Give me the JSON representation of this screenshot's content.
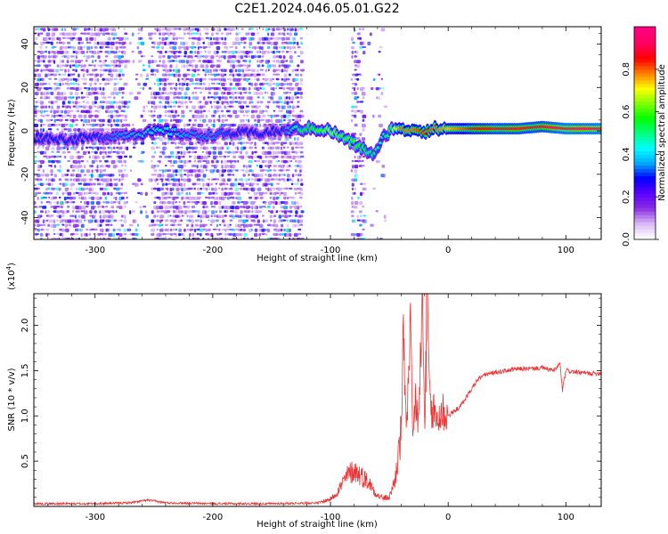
{
  "page_title": "C2E1.2024.046.05.01.G22",
  "chart_data": [
    {
      "type": "heatmap",
      "xlabel": "Height of straight line (km)",
      "ylabel": "Frequency (Hz)",
      "xlim": [
        -352,
        130
      ],
      "ylim": [
        -50,
        48
      ],
      "x_ticks": [
        -300,
        -200,
        -100,
        0,
        100
      ],
      "y_ticks": [
        -40,
        -20,
        0,
        20,
        40
      ],
      "grid": false,
      "colorbar": {
        "label": "Normalized spectral amplitude",
        "range": [
          0,
          1
        ],
        "ticks": [
          0.0,
          0.2,
          0.4,
          0.6,
          0.8
        ],
        "tick_labels": [
          "0.0",
          "0.2",
          "0.4",
          "0.6",
          "0.8"
        ],
        "colors": [
          "#ffffff",
          "#d8b4f6",
          "#8a2be2",
          "#5a00ff",
          "#0000ff",
          "#00aaff",
          "#00ffff",
          "#00ff80",
          "#00ff00",
          "#80ff00",
          "#ffff00",
          "#ff8000",
          "#ff0000",
          "#ff0060",
          "#ff0080"
        ]
      },
      "ridge": {
        "x": [
          -350,
          -320,
          -300,
          -280,
          -260,
          -240,
          -220,
          -200,
          -180,
          -160,
          -140,
          -125,
          -110,
          -100,
          -90,
          -80,
          -70,
          -62,
          -55,
          -50,
          -45,
          -40,
          -30,
          -20,
          -10,
          0,
          20,
          40,
          60,
          80,
          100,
          130
        ],
        "frequency": [
          -3,
          -4,
          -3,
          -2,
          -1,
          0,
          -2,
          -2,
          -1,
          -1,
          0,
          1,
          1,
          0,
          -3,
          -6,
          -9,
          -11,
          -3,
          0,
          2,
          0,
          1,
          0,
          1,
          1,
          1,
          1,
          1,
          2,
          1,
          1
        ],
        "amplitude": [
          0.3,
          0.3,
          0.3,
          0.35,
          0.4,
          0.45,
          0.35,
          0.35,
          0.3,
          0.3,
          0.3,
          0.55,
          0.6,
          0.65,
          0.6,
          0.6,
          0.55,
          0.5,
          0.45,
          0.55,
          0.7,
          0.8,
          0.8,
          0.85,
          0.8,
          0.75,
          0.85,
          0.9,
          0.9,
          0.9,
          0.95,
          0.95
        ]
      }
    },
    {
      "type": "line",
      "xlabel": "Height of straight line (km)",
      "ylabel": "SNR (10 * v/v)",
      "y_multiplier": "(x10",
      "y_multiplier_exp": "4",
      "y_multiplier_close": ")",
      "xlim": [
        -352,
        130
      ],
      "ylim": [
        0,
        2.35
      ],
      "x_ticks": [
        -300,
        -200,
        -100,
        0,
        100
      ],
      "y_ticks": [
        0.5,
        1.0,
        1.5,
        2.0
      ],
      "y_tick_labels": [
        "0.5",
        "1.0",
        "1.5",
        "2.0"
      ],
      "grid": false,
      "series": [
        {
          "color": "#ee3333",
          "x": [
            -352,
            -300,
            -270,
            -255,
            -240,
            -200,
            -150,
            -110,
            -100,
            -95,
            -90,
            -85,
            -80,
            -75,
            -70,
            -65,
            -60,
            -55,
            -50,
            -45,
            -40,
            -38,
            -35,
            -32,
            -30,
            -28,
            -25,
            -22,
            -20,
            -18,
            -15,
            -12,
            -10,
            -5,
            0,
            5,
            10,
            15,
            20,
            25,
            30,
            40,
            50,
            60,
            70,
            80,
            90,
            95,
            97,
            100,
            110,
            120,
            130
          ],
          "snr": [
            0.03,
            0.03,
            0.04,
            0.07,
            0.04,
            0.03,
            0.03,
            0.04,
            0.08,
            0.15,
            0.25,
            0.35,
            0.4,
            0.35,
            0.3,
            0.22,
            0.12,
            0.09,
            0.1,
            0.3,
            0.8,
            1.8,
            0.9,
            1.85,
            0.7,
            1.2,
            0.9,
            2.3,
            0.9,
            2.2,
            1.0,
            1.05,
            0.95,
            1.05,
            1.0,
            1.05,
            1.1,
            1.2,
            1.3,
            1.4,
            1.45,
            1.48,
            1.5,
            1.52,
            1.52,
            1.53,
            1.5,
            1.58,
            1.28,
            1.5,
            1.48,
            1.47,
            1.47
          ]
        }
      ]
    }
  ]
}
